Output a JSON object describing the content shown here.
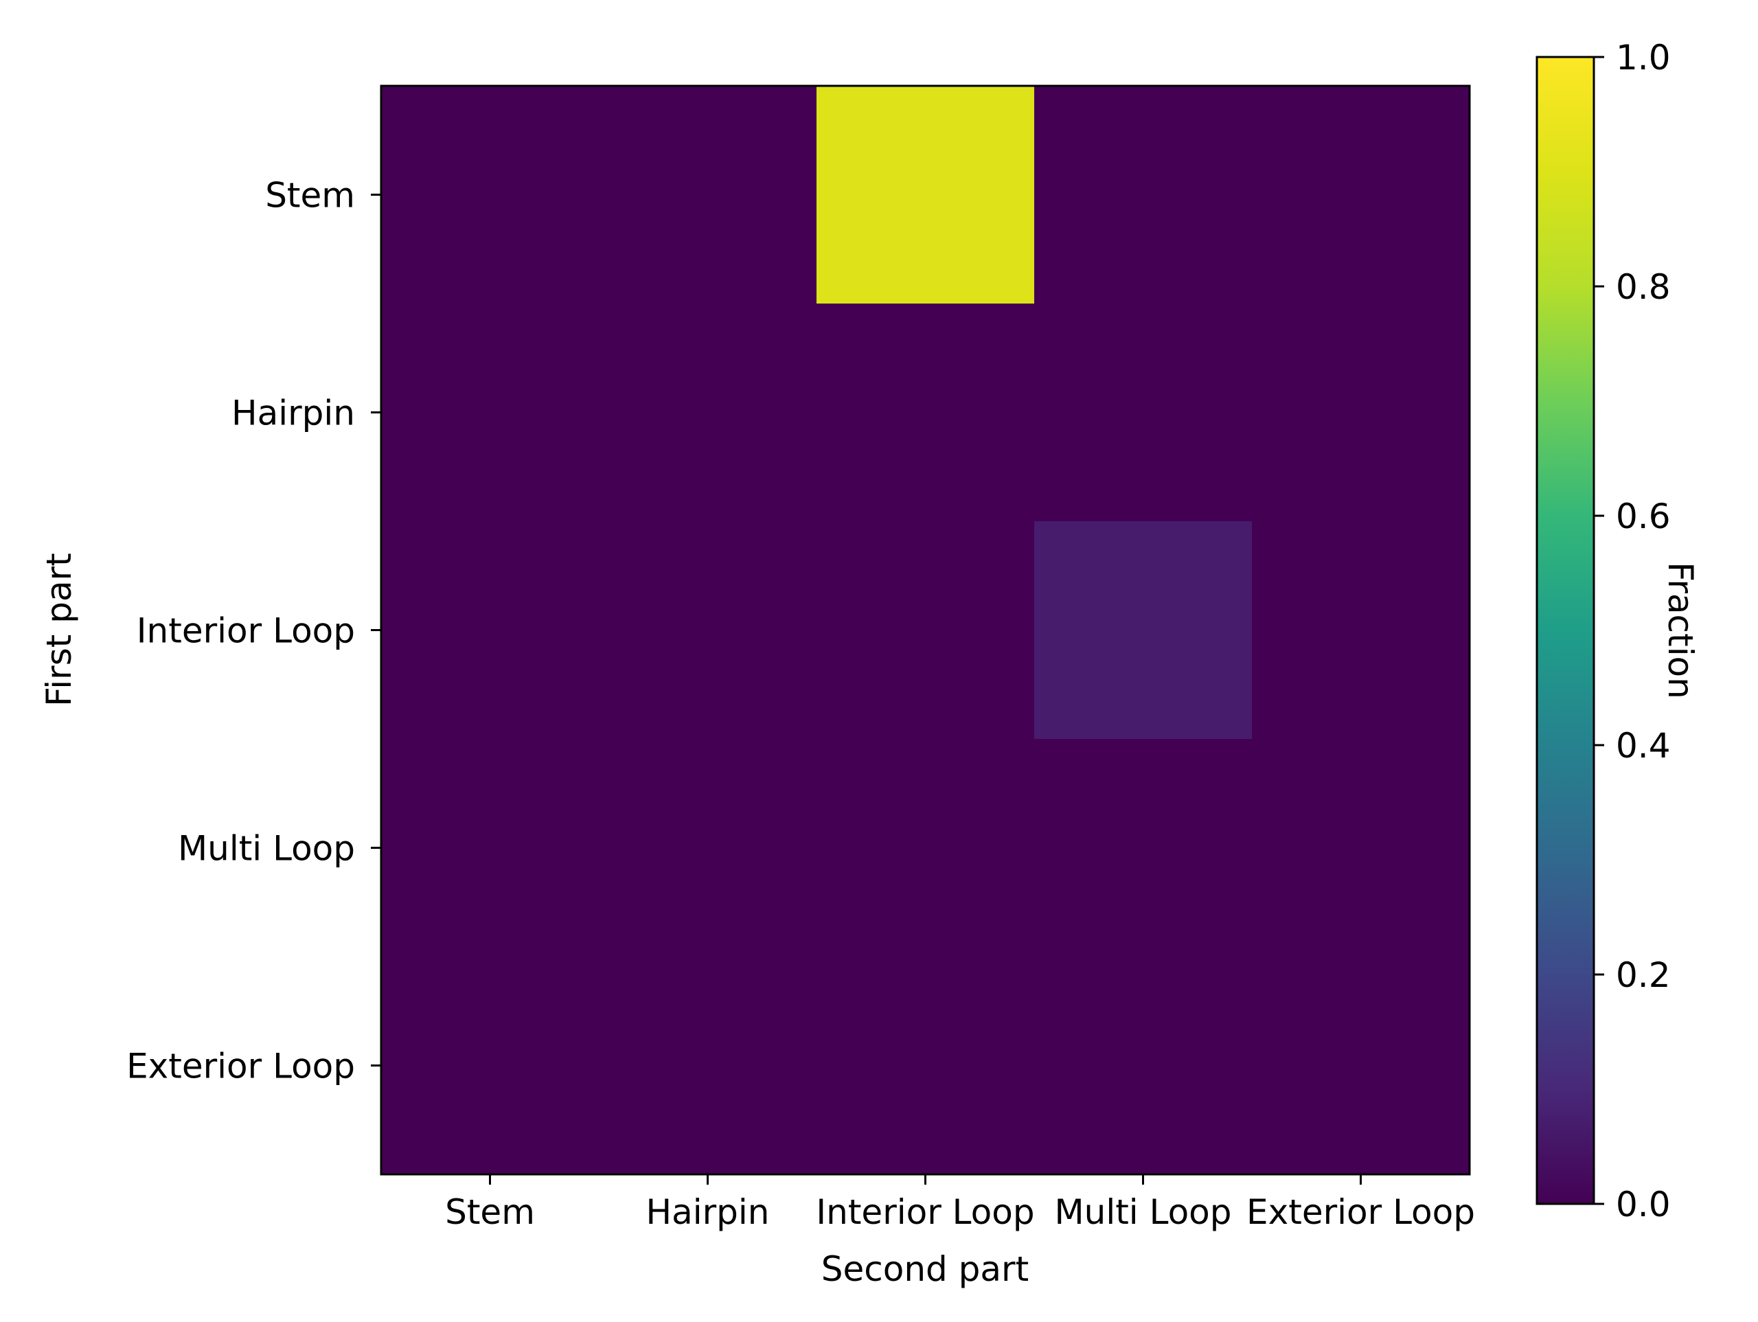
{
  "chart_data": {
    "type": "heatmap",
    "x_categories": [
      "Stem",
      "Hairpin",
      "Interior Loop",
      "Multi Loop",
      "Exterior Loop"
    ],
    "y_categories": [
      "Stem",
      "Hairpin",
      "Interior Loop",
      "Multi Loop",
      "Exterior Loop"
    ],
    "values": [
      [
        0.0,
        0.0,
        0.9,
        0.0,
        0.0
      ],
      [
        0.0,
        0.0,
        0.0,
        0.0,
        0.0
      ],
      [
        0.0,
        0.0,
        0.0,
        0.07,
        0.0
      ],
      [
        0.0,
        0.0,
        0.0,
        0.0,
        0.0
      ],
      [
        0.0,
        0.0,
        0.0,
        0.0,
        0.0
      ]
    ],
    "xlabel": "Second part",
    "ylabel": "First part",
    "colorbar": {
      "label": "Fraction",
      "range": [
        0.0,
        1.0
      ],
      "ticks": [
        "0.0",
        "0.2",
        "0.4",
        "0.6",
        "0.8",
        "1.0"
      ],
      "colormap": "viridis"
    }
  }
}
